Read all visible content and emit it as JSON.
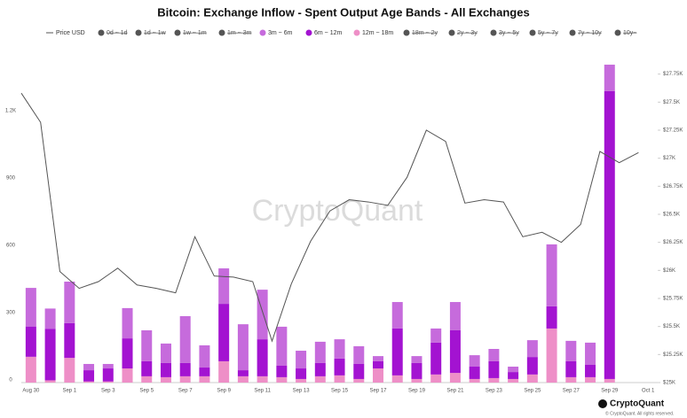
{
  "chart_data": {
    "type": "bar",
    "title": "Bitcoin: Exchange Inflow - Spent Output Age Bands - All Exchanges",
    "watermark": "CryptoQuant",
    "footer_brand": "CryptoQuant",
    "footer_note": "© CryptoQuant. All rights reserved.",
    "categories": [
      "Aug 30",
      null,
      "Sep 1",
      null,
      "Sep 3",
      null,
      "Sep 5",
      null,
      "Sep 7",
      null,
      "Sep 9",
      null,
      "Sep 11",
      null,
      "Sep 13",
      null,
      "Sep 15",
      null,
      "Sep 17",
      null,
      "Sep 19",
      null,
      "Sep 21",
      null,
      "Sep 23",
      null,
      "Sep 25",
      null,
      "Sep 27",
      null,
      "Sep 29",
      null,
      "Oct 1"
    ],
    "ylim": [
      0,
      1500
    ],
    "yticks": [
      0,
      300,
      600,
      900,
      {
        "value": 1200,
        "label": "1.2K"
      }
    ],
    "y2lim": [
      25000,
      28000
    ],
    "y2ticks": [
      {
        "value": 25000,
        "label": "$25K"
      },
      {
        "value": 25250,
        "label": "$25.25K"
      },
      {
        "value": 25500,
        "label": "$25.5K"
      },
      {
        "value": 25750,
        "label": "$25.75K"
      },
      {
        "value": 26000,
        "label": "$26K"
      },
      {
        "value": 26250,
        "label": "$26.25K"
      },
      {
        "value": 26500,
        "label": "$26.5K"
      },
      {
        "value": 26750,
        "label": "$26.75K"
      },
      {
        "value": 27000,
        "label": "$27K"
      },
      {
        "value": 27250,
        "label": "$27.25K"
      },
      {
        "value": 27500,
        "label": "$27.5K"
      },
      {
        "value": 27750,
        "label": "$27.75K"
      }
    ],
    "series": [
      {
        "name": "Price USD",
        "type": "line",
        "axis": "y2",
        "color": "#555555",
        "values": [
          27580,
          27320,
          25990,
          25840,
          25900,
          26020,
          25870,
          25840,
          25800,
          26300,
          25950,
          25940,
          25900,
          25370,
          25880,
          26260,
          26530,
          26630,
          26610,
          26580,
          26830,
          27250,
          27150,
          26600,
          26630,
          26610,
          26300,
          26340,
          26250,
          26410,
          27060,
          26960,
          27050
        ]
      },
      {
        "name": "0d ~ 1d",
        "hidden": true,
        "color": "#555555"
      },
      {
        "name": "1d ~ 1w",
        "hidden": true,
        "color": "#555555"
      },
      {
        "name": "1w ~ 1m",
        "hidden": true,
        "color": "#555555"
      },
      {
        "name": "1m ~ 3m",
        "hidden": true,
        "color": "#555555"
      },
      {
        "name": "3m ~ 6m",
        "color": "#c66bdc",
        "values": [
          172,
          90,
          185,
          28,
          20,
          135,
          138,
          87,
          209,
          99,
          158,
          205,
          221,
          174,
          79,
          95,
          86,
          79,
          23,
          118,
          31,
          63,
          126,
          51,
          55,
          24,
          75,
          276,
          91,
          99,
          118,
          null,
          null
        ]
      },
      {
        "name": "6m ~ 12m",
        "color": "#a313d1",
        "values": [
          135,
          230,
          155,
          50,
          58,
          134,
          67,
          63,
          59,
          39,
          256,
          27,
          165,
          51,
          47,
          59,
          75,
          67,
          32,
          209,
          71,
          142,
          190,
          55,
          75,
          31,
          78,
          99,
          71,
          55,
          1283,
          null,
          null
        ]
      },
      {
        "name": "12m ~ 18m",
        "color": "#ee8fc7",
        "values": [
          115,
          10,
          110,
          5,
          5,
          63,
          28,
          24,
          28,
          28,
          95,
          28,
          28,
          24,
          16,
          28,
          32,
          16,
          63,
          32,
          16,
          36,
          43,
          16,
          20,
          16,
          36,
          241,
          24,
          24,
          16,
          null,
          null
        ]
      },
      {
        "name": "18m ~ 2y",
        "hidden": true,
        "color": "#555555"
      },
      {
        "name": "2y ~ 3y",
        "hidden": true,
        "color": "#555555"
      },
      {
        "name": "3y ~ 5y",
        "hidden": true,
        "color": "#555555"
      },
      {
        "name": "5y ~ 7y",
        "hidden": true,
        "color": "#555555"
      },
      {
        "name": "7y ~ 10y",
        "hidden": true,
        "color": "#555555"
      },
      {
        "name": "10y~",
        "hidden": true,
        "color": "#555555"
      }
    ]
  }
}
